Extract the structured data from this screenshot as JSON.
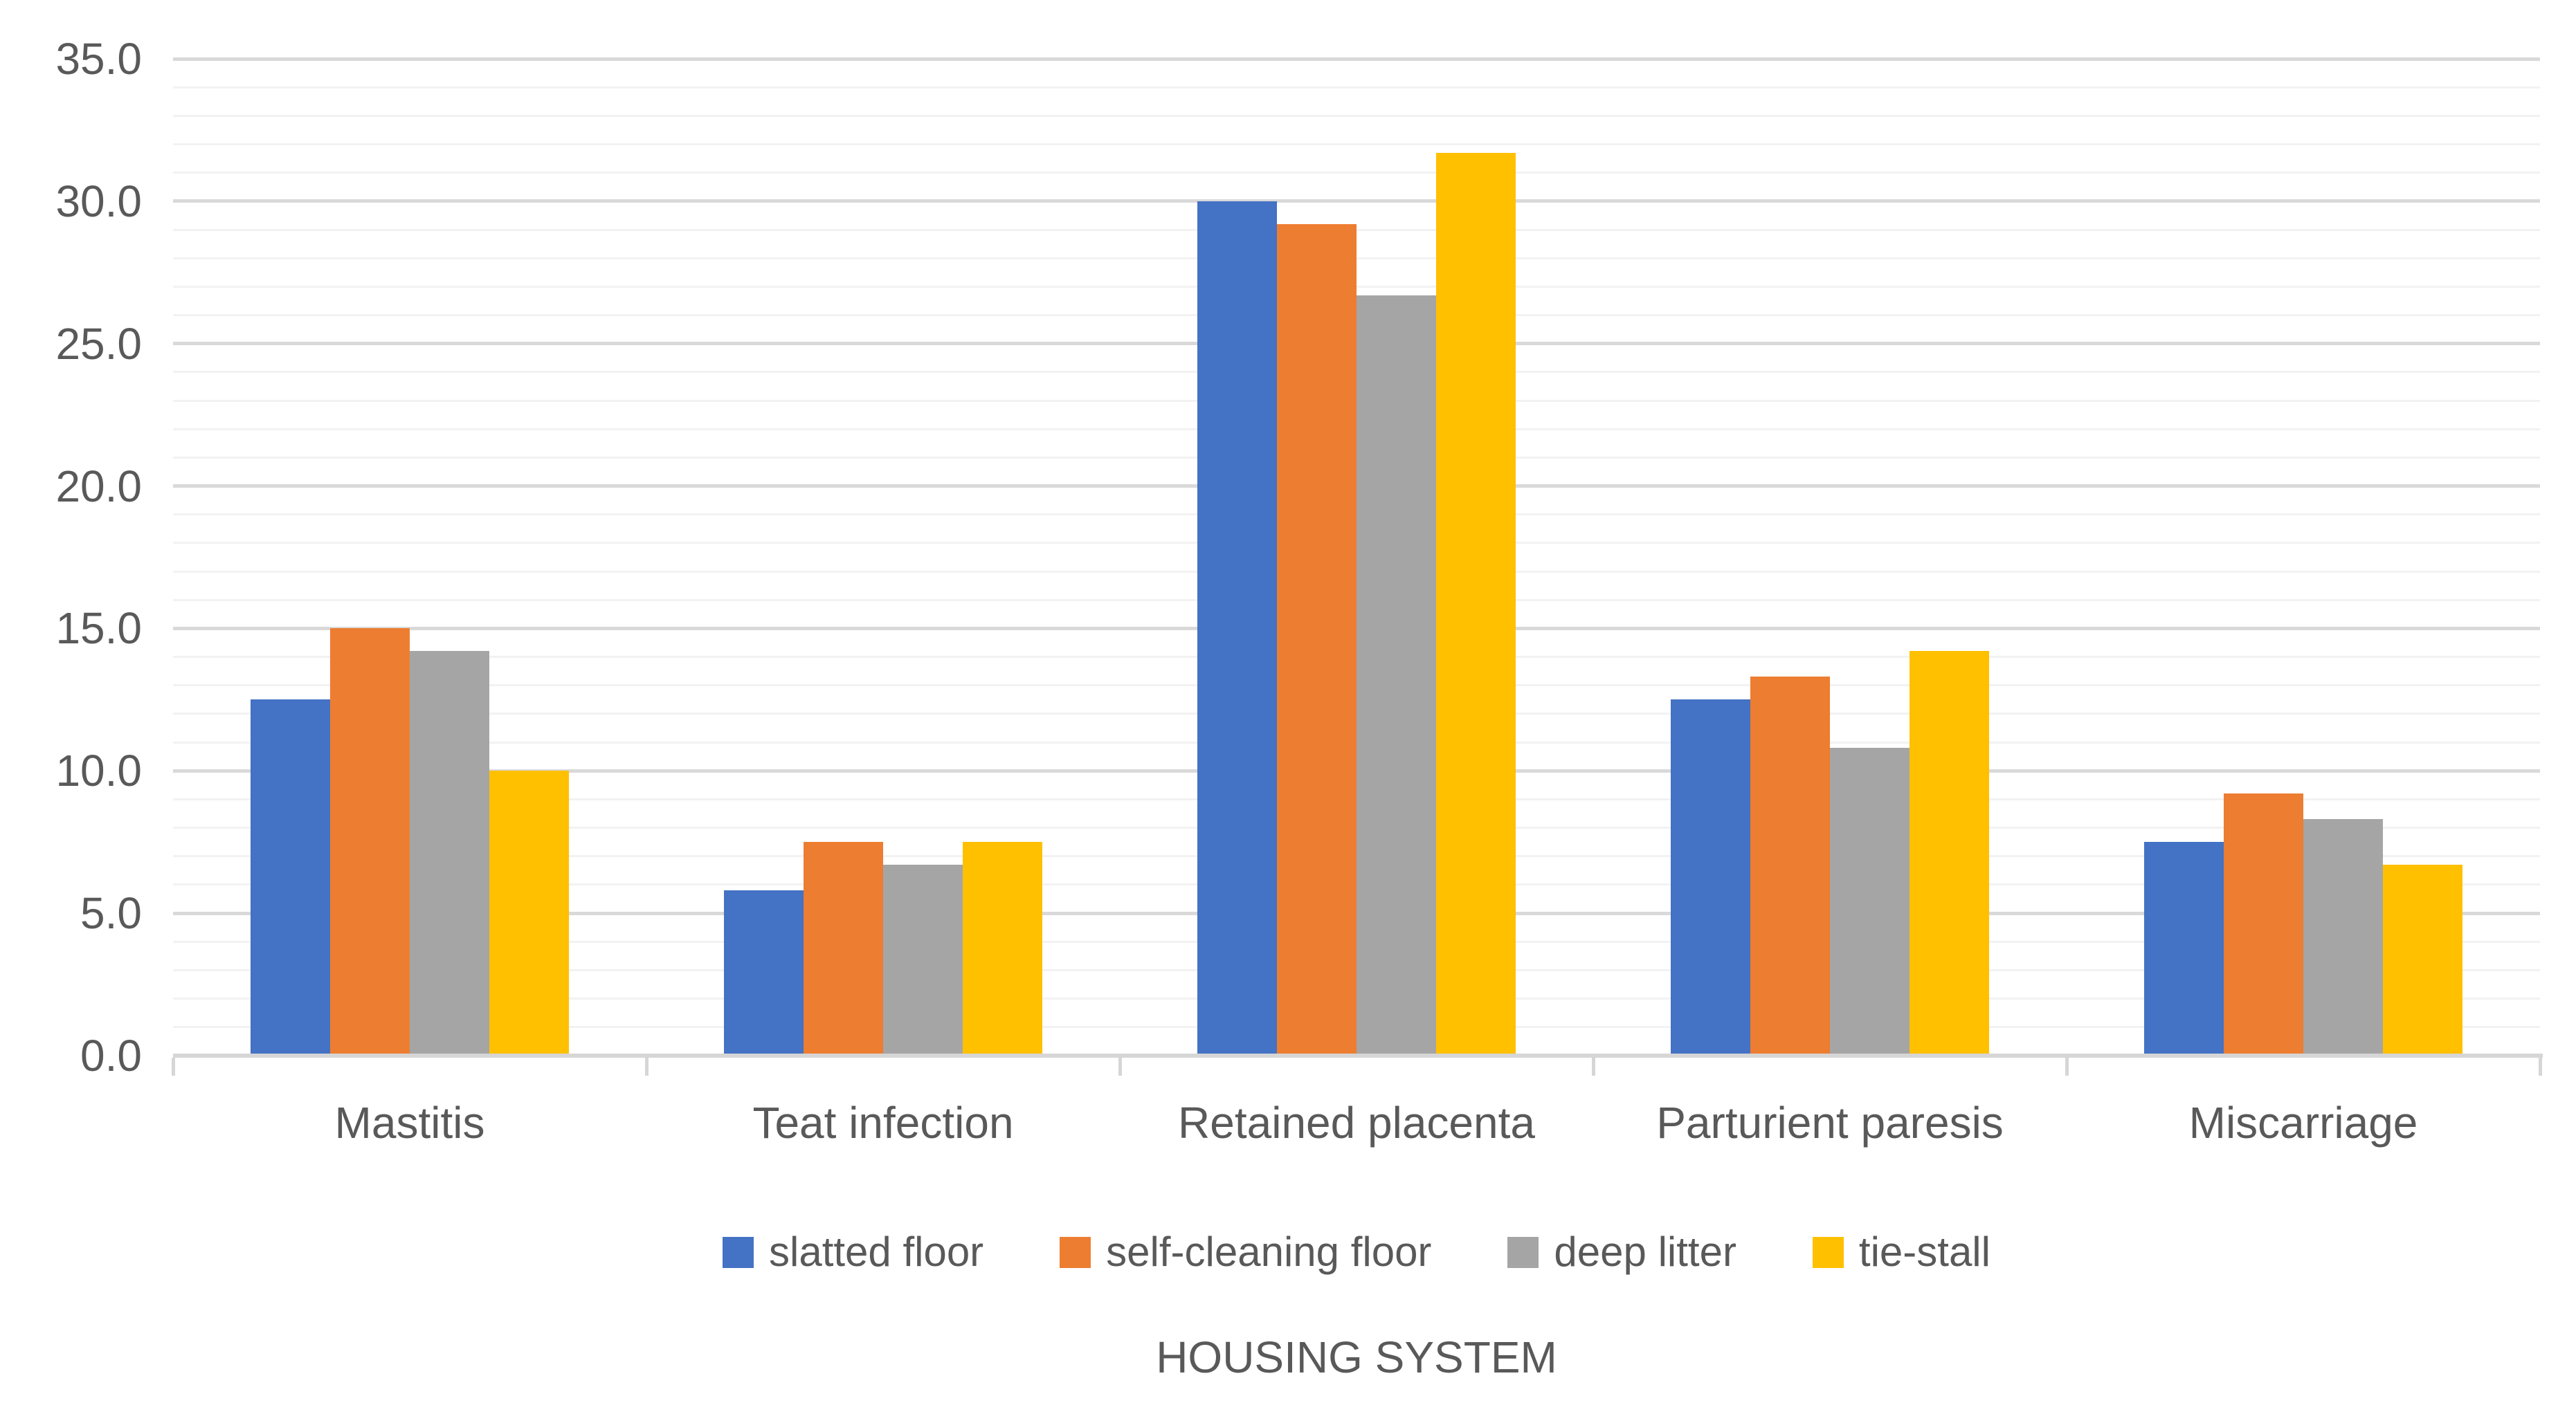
{
  "chart_data": {
    "type": "bar",
    "title": "",
    "categories": [
      "Mastitis",
      "Teat infection",
      "Retained placenta",
      "Parturient paresis",
      "Miscarriage"
    ],
    "series": [
      {
        "name": "slatted floor",
        "color": "#4472C4",
        "values": [
          12.5,
          5.8,
          30.0,
          12.5,
          7.5
        ]
      },
      {
        "name": "self-cleaning floor",
        "color": "#ED7D31",
        "values": [
          15.0,
          7.5,
          29.2,
          13.3,
          9.2
        ]
      },
      {
        "name": "deep litter",
        "color": "#A5A5A5",
        "values": [
          14.2,
          6.7,
          26.7,
          10.8,
          8.3
        ]
      },
      {
        "name": "tie-stall",
        "color": "#FFC000",
        "values": [
          10.0,
          7.5,
          31.7,
          14.2,
          6.7
        ]
      }
    ],
    "xlabel": "HOUSING SYSTEM",
    "ylabel": "",
    "ylim": [
      0,
      35
    ],
    "y_major_step": 5,
    "y_minor_step": 1,
    "y_tick_labels": [
      "0.0",
      "5.0",
      "10.0",
      "15.0",
      "20.0",
      "25.0",
      "30.0",
      "35.0"
    ],
    "grid": true,
    "legend_position": "bottom-center"
  },
  "colors": {
    "text": "#595959",
    "grid_major": "#D9D9D9",
    "grid_minor": "#F2F2F2",
    "axis_line": "#D6D6D6",
    "background": "#FFFFFF"
  }
}
